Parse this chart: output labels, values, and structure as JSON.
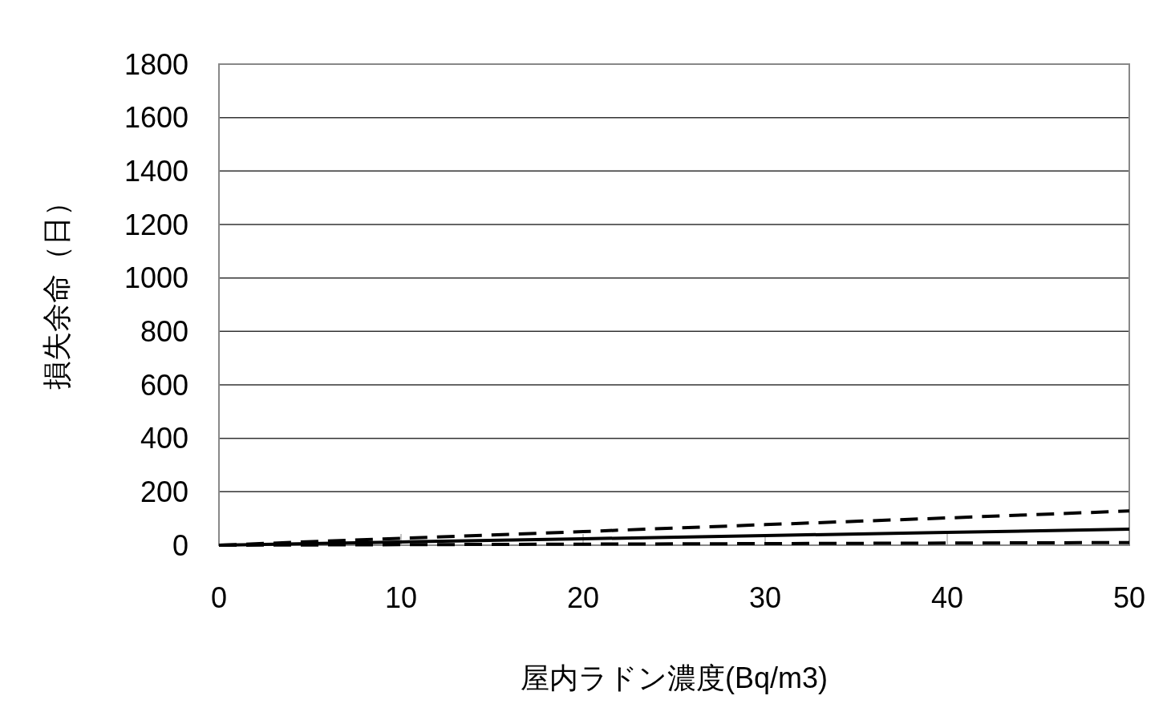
{
  "chart_data": {
    "type": "line",
    "xlabel": "屋内ラドン濃度(Bq/m3)",
    "ylabel": "損失余命（日）",
    "x": [
      0,
      10,
      20,
      30,
      40,
      50
    ],
    "series": [
      {
        "color": "#000000",
        "line_style": "dashed",
        "values": [
          0,
          26,
          51,
          77,
          102,
          128
        ]
      },
      {
        "color": "#000000",
        "line_style": "solid",
        "values": [
          0,
          12,
          24,
          36,
          48,
          60
        ]
      },
      {
        "color": "#000000",
        "line_style": "dashed",
        "values": [
          0,
          2,
          4,
          6,
          8,
          10
        ]
      }
    ],
    "xlim": [
      0,
      50
    ],
    "xticks": [
      0,
      10,
      20,
      30,
      40,
      50
    ],
    "ylim": [
      0,
      1800
    ],
    "yticks": [
      0,
      200,
      400,
      600,
      800,
      1000,
      1200,
      1400,
      1600,
      1800
    ],
    "grid": "y",
    "marker": "none"
  }
}
